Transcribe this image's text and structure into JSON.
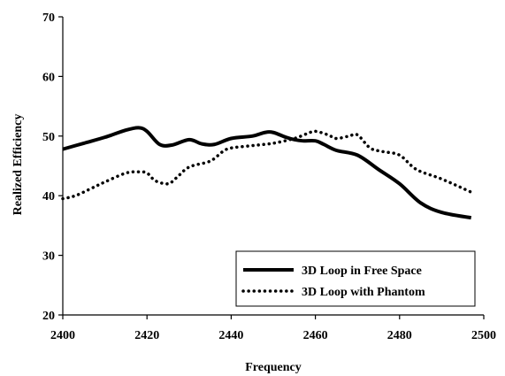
{
  "chart_data": {
    "type": "line",
    "xlabel": "Frequency",
    "ylabel": "Realized Efficiency",
    "xlim": [
      2400,
      2500
    ],
    "ylim": [
      20,
      70
    ],
    "x_ticks": [
      2400,
      2420,
      2440,
      2460,
      2480,
      2500
    ],
    "y_ticks": [
      20,
      30,
      40,
      50,
      60,
      70
    ],
    "grid": false,
    "legend_position": "bottom-right",
    "series": [
      {
        "name": "3D Loop in Free Space",
        "style": "solid",
        "color": "#000000",
        "x": [
          2400,
          2405,
          2410,
          2415,
          2418,
          2420,
          2423,
          2426,
          2430,
          2433,
          2436,
          2440,
          2445,
          2448,
          2450,
          2453,
          2455,
          2457,
          2460,
          2462,
          2465,
          2470,
          2475,
          2480,
          2485,
          2490,
          2497
        ],
        "y": [
          47.8,
          48.8,
          49.8,
          51.0,
          51.4,
          50.8,
          48.6,
          48.5,
          49.4,
          48.7,
          48.6,
          49.6,
          50.0,
          50.6,
          50.6,
          49.8,
          49.4,
          49.2,
          49.2,
          48.6,
          47.6,
          46.8,
          44.4,
          42.0,
          38.8,
          37.2,
          36.3
        ]
      },
      {
        "name": "3D Loop with Phantom",
        "style": "dotted",
        "color": "#000000",
        "x": [
          2400,
          2403,
          2407,
          2410,
          2415,
          2418,
          2420,
          2422,
          2425,
          2427,
          2430,
          2435,
          2438,
          2440,
          2445,
          2450,
          2455,
          2458,
          2460,
          2463,
          2465,
          2468,
          2470,
          2473,
          2476,
          2480,
          2484,
          2490,
          2497
        ],
        "y": [
          39.5,
          40.0,
          41.3,
          42.3,
          43.8,
          44.0,
          43.8,
          42.5,
          42.0,
          43.0,
          44.8,
          45.8,
          47.4,
          48.0,
          48.4,
          48.8,
          49.6,
          50.4,
          50.8,
          50.2,
          49.6,
          50.0,
          50.2,
          48.0,
          47.4,
          46.8,
          44.4,
          42.8,
          40.6
        ]
      }
    ]
  }
}
